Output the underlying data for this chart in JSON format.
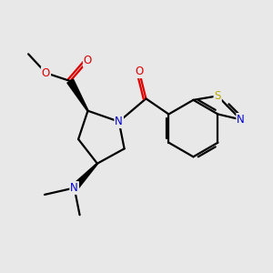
{
  "background_color": "#e8e8e8",
  "bond_color": "#000000",
  "atom_colors": {
    "O": "#dd0000",
    "N": "#0000cc",
    "S": "#bbaa00",
    "C": "#000000"
  },
  "figsize": [
    3.0,
    3.0
  ],
  "dpi": 100
}
